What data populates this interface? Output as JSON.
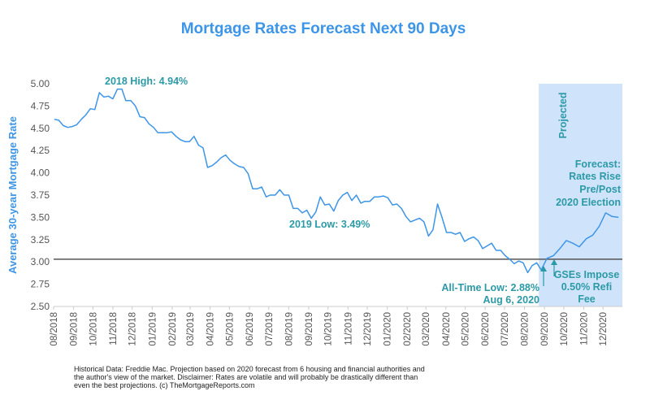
{
  "chart_data": {
    "type": "line",
    "title": "Mortgage Rates Forecast Next 90 Days",
    "ylabel": "Average 30-year Mortgage Rate",
    "xlabel": "",
    "ylim": [
      2.5,
      5.0
    ],
    "yticks": [
      "5.00",
      "4.75",
      "4.50",
      "4.25",
      "4.00",
      "3.75",
      "3.50",
      "3.25",
      "3.00",
      "2.75",
      "2.50"
    ],
    "xticks": [
      "08/2018",
      "09/2018",
      "10/2018",
      "11/2018",
      "12/2018",
      "01/2019",
      "02/2019",
      "03/2019",
      "04/2019",
      "05/2019",
      "06/2019",
      "07/2019",
      "08/2019",
      "09/2019",
      "10/2019",
      "11/2019",
      "12/2019",
      "01/2020",
      "02/2020",
      "03/2020",
      "04/2020",
      "05/2020",
      "06/2020",
      "07/2020",
      "08/2020",
      "09/2020",
      "10/2020",
      "11/2020",
      "12/2020"
    ],
    "reference_line": 3.03,
    "projected_region": {
      "start": "09/2020",
      "end": "12/2020",
      "label": "Projected",
      "color": "#cfe4fb"
    },
    "line_color": "#3d95e8",
    "grid": false,
    "series": [
      {
        "x": [
          "2018-08-02",
          "2018-08-09",
          "2018-08-16",
          "2018-08-23",
          "2018-08-30",
          "2018-09-06",
          "2018-09-13",
          "2018-09-20",
          "2018-09-27",
          "2018-10-04",
          "2018-10-11",
          "2018-10-18",
          "2018-10-25",
          "2018-11-01",
          "2018-11-08",
          "2018-11-15",
          "2018-11-21",
          "2018-11-29",
          "2018-12-06",
          "2018-12-13",
          "2018-12-20",
          "2018-12-27",
          "2019-01-03",
          "2019-01-10",
          "2019-01-17",
          "2019-01-24",
          "2019-01-31",
          "2019-02-07",
          "2019-02-14",
          "2019-02-21",
          "2019-02-28",
          "2019-03-07",
          "2019-03-14",
          "2019-03-21",
          "2019-03-28",
          "2019-04-04",
          "2019-04-11",
          "2019-04-18",
          "2019-04-25",
          "2019-05-02",
          "2019-05-09",
          "2019-05-16",
          "2019-05-23",
          "2019-05-30",
          "2019-06-06",
          "2019-06-13",
          "2019-06-20",
          "2019-06-27",
          "2019-07-03",
          "2019-07-11",
          "2019-07-18",
          "2019-07-25",
          "2019-08-01",
          "2019-08-08",
          "2019-08-15",
          "2019-08-22",
          "2019-08-29",
          "2019-09-05",
          "2019-09-12",
          "2019-09-19",
          "2019-09-26",
          "2019-10-03",
          "2019-10-10",
          "2019-10-17",
          "2019-10-24",
          "2019-10-31",
          "2019-11-07",
          "2019-11-14",
          "2019-11-21",
          "2019-11-27",
          "2019-12-05",
          "2019-12-12",
          "2019-12-19",
          "2019-12-26",
          "2020-01-02",
          "2020-01-09",
          "2020-01-16",
          "2020-01-23",
          "2020-01-30",
          "2020-02-06",
          "2020-02-13",
          "2020-02-20",
          "2020-02-27",
          "2020-03-05",
          "2020-03-12",
          "2020-03-19",
          "2020-03-26",
          "2020-04-02",
          "2020-04-09",
          "2020-04-16",
          "2020-04-23",
          "2020-04-30",
          "2020-05-07",
          "2020-05-14",
          "2020-05-21",
          "2020-05-28",
          "2020-06-04",
          "2020-06-11",
          "2020-06-18",
          "2020-06-25",
          "2020-07-02",
          "2020-07-09",
          "2020-07-16",
          "2020-07-23",
          "2020-07-30",
          "2020-08-06",
          "2020-08-13",
          "2020-08-20",
          "2020-08-27"
        ],
        "values": [
          4.6,
          4.59,
          4.53,
          4.51,
          4.52,
          4.54,
          4.6,
          4.65,
          4.72,
          4.71,
          4.9,
          4.85,
          4.86,
          4.83,
          4.94,
          4.94,
          4.81,
          4.81,
          4.75,
          4.63,
          4.62,
          4.55,
          4.51,
          4.45,
          4.45,
          4.45,
          4.46,
          4.41,
          4.37,
          4.35,
          4.35,
          4.41,
          4.31,
          4.28,
          4.06,
          4.08,
          4.12,
          4.17,
          4.2,
          4.14,
          4.1,
          4.07,
          4.06,
          3.99,
          3.82,
          3.82,
          3.84,
          3.73,
          3.75,
          3.75,
          3.81,
          3.75,
          3.75,
          3.6,
          3.6,
          3.55,
          3.58,
          3.49,
          3.56,
          3.73,
          3.64,
          3.65,
          3.57,
          3.69,
          3.75,
          3.78,
          3.69,
          3.75,
          3.66,
          3.68,
          3.68,
          3.73,
          3.73,
          3.74,
          3.72,
          3.64,
          3.65,
          3.6,
          3.51,
          3.45,
          3.47,
          3.49,
          3.45,
          3.29,
          3.36,
          3.65,
          3.5,
          3.33,
          3.33,
          3.31,
          3.33,
          3.23,
          3.26,
          3.28,
          3.24,
          3.15,
          3.18,
          3.21,
          3.13,
          3.13,
          3.07,
          3.03,
          2.98,
          3.01,
          2.99,
          2.88,
          2.96,
          2.99,
          2.91
        ]
      },
      {
        "x": [
          "2020-08-27",
          "2020-09-05",
          "2020-09-15",
          "2020-09-25",
          "2020-10-05",
          "2020-10-15",
          "2020-10-25",
          "2020-11-05",
          "2020-11-15",
          "2020-11-25",
          "2020-12-05",
          "2020-12-15",
          "2020-12-25"
        ],
        "values": [
          2.91,
          3.04,
          3.07,
          3.15,
          3.24,
          3.21,
          3.17,
          3.26,
          3.3,
          3.4,
          3.55,
          3.51,
          3.5
        ]
      }
    ],
    "annotations": [
      {
        "text": "2018 High: 4.94%"
      },
      {
        "text": "2019 Low: 3.49%"
      },
      {
        "lines": [
          "All-Time Low: 2.88%",
          "Aug 6, 2020"
        ]
      },
      {
        "lines": [
          "GSEs Impose",
          "0.50% Refi",
          "Fee"
        ]
      },
      {
        "lines": [
          "Forecast:",
          "Rates Rise",
          "Pre/Post",
          "2020 Election"
        ]
      }
    ]
  },
  "footnote": "Historical Data: Freddie Mac.  Projection based on 2020 forecast from 6 housing and financial authorities and the author's view of the market. Disclaimer: Rates are volatile and will probably be drastically different than even the best projections. (c) TheMortgageReports.com"
}
